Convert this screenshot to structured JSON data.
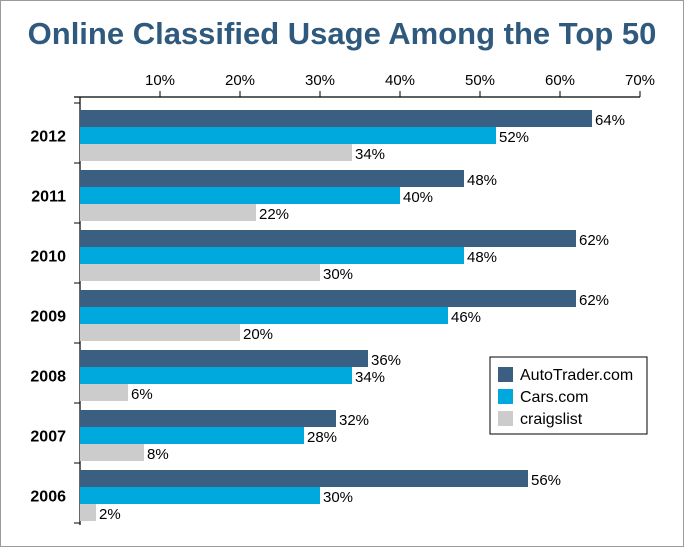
{
  "chart_data": {
    "type": "bar",
    "orientation": "horizontal",
    "title": "Online Classified Usage Among the Top 50",
    "xlabel": "",
    "ylabel": "",
    "xlim": [
      0,
      70
    ],
    "tick_values": [
      10,
      20,
      30,
      40,
      50,
      60,
      70
    ],
    "tick_labels": [
      "10%",
      "20%",
      "30%",
      "40%",
      "50%",
      "60%",
      "70%"
    ],
    "categories": [
      "2012",
      "2011",
      "2010",
      "2009",
      "2008",
      "2007",
      "2006"
    ],
    "series": [
      {
        "name": "AutoTrader.com",
        "color": "#3b5f80",
        "values": [
          64,
          48,
          62,
          62,
          36,
          32,
          56
        ]
      },
      {
        "name": "Cars.com",
        "color": "#00a9dd",
        "values": [
          52,
          40,
          48,
          46,
          34,
          28,
          30
        ]
      },
      {
        "name": "craigslist",
        "color": "#cccccc",
        "values": [
          34,
          22,
          30,
          20,
          6,
          8,
          2
        ]
      }
    ],
    "value_suffix": "%",
    "grid": false,
    "legend_position": "bottom-right"
  }
}
